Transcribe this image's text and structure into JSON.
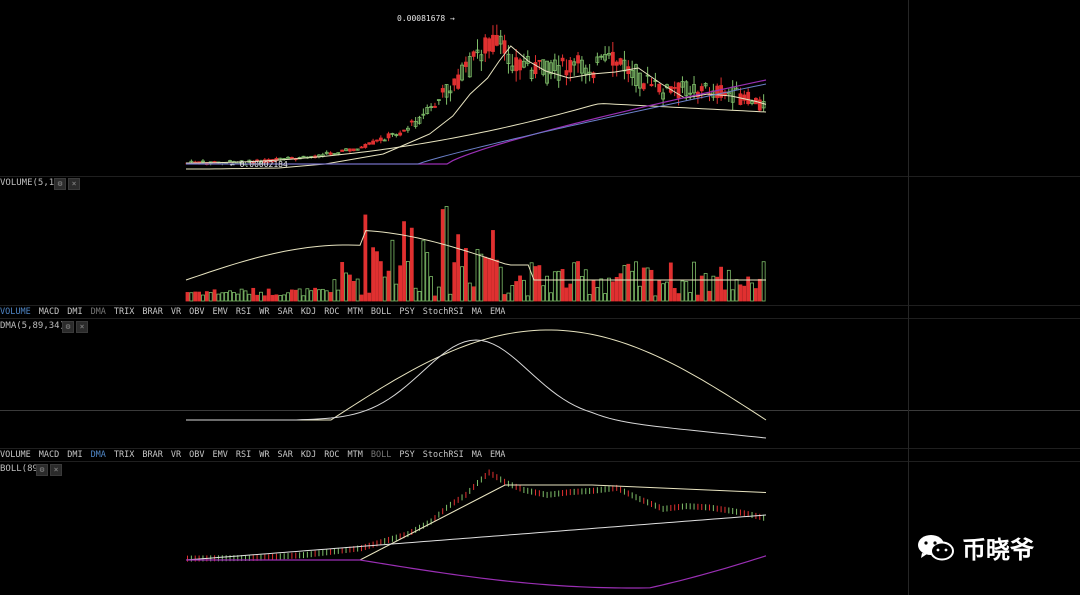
{
  "panes": {
    "volume": {
      "label": "VOLUME(5,13)"
    },
    "dma": {
      "label": "DMA(5,89,34)"
    },
    "boll": {
      "label": "BOLL(89)"
    }
  },
  "price": {
    "high_label": "0.00081678",
    "low_label": "0.00002184"
  },
  "indicator_tabs": [
    "VOLUME",
    "MACD",
    "DMI",
    "DMA",
    "TRIX",
    "BRAR",
    "VR",
    "OBV",
    "EMV",
    "RSI",
    "WR",
    "SAR",
    "KDJ",
    "ROC",
    "MTM",
    "BOLL",
    "PSY",
    "StochRSI",
    "MA",
    "EMA"
  ],
  "tabs_row1_active": "VOLUME",
  "tabs_row2_active": "DMA",
  "watermark": {
    "text": "币晓爷"
  },
  "colors": {
    "up": "#7fbf6a",
    "down": "#e03030",
    "ma_light": "#e8e4c0",
    "ma_purple": "#9a2fb4",
    "ma_blue": "#6a7fc8",
    "tab_active": "#4f86c6"
  }
}
